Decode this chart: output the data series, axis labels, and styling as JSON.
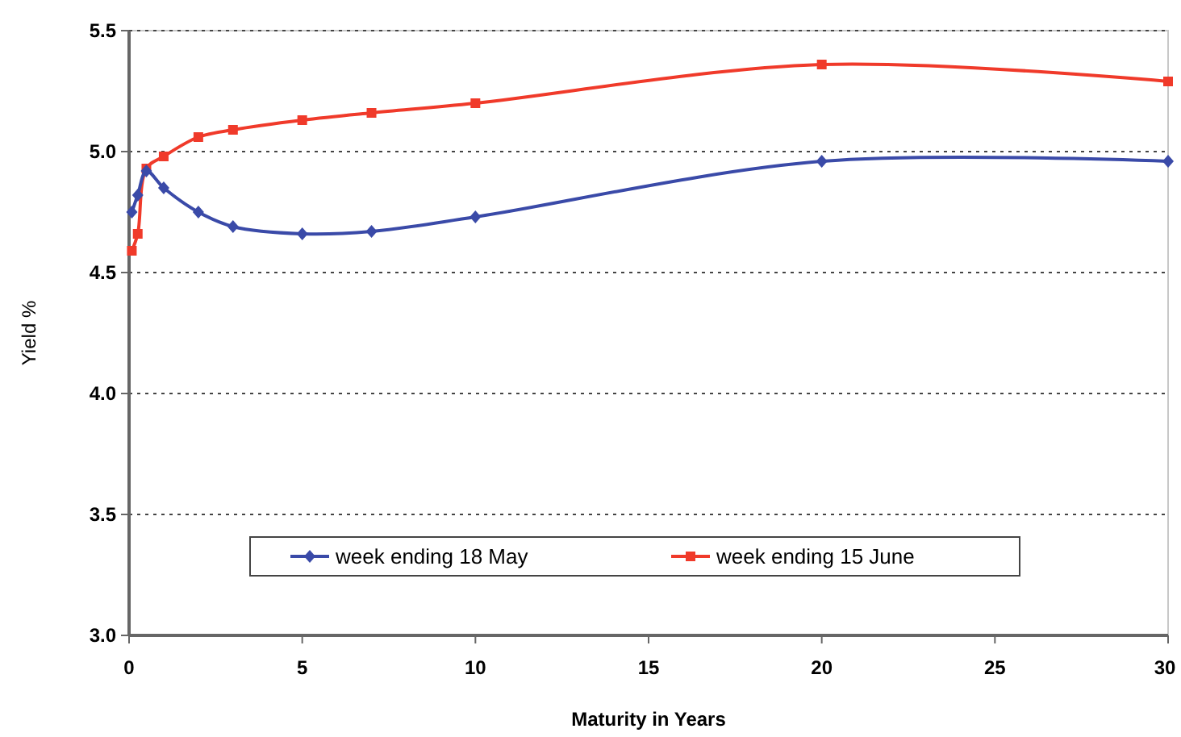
{
  "chart_data": {
    "type": "line",
    "xlabel": "Maturity in Years",
    "ylabel": "Yield %",
    "xlim": [
      0,
      30
    ],
    "xticks": [
      0,
      5,
      10,
      15,
      20,
      25,
      30
    ],
    "ylim": [
      3.0,
      5.5
    ],
    "yticks": [
      {
        "value": 3.0,
        "label": "3.0"
      },
      {
        "value": 3.5,
        "label": "3.5"
      },
      {
        "value": 4.0,
        "label": "4.0"
      },
      {
        "value": 4.5,
        "label": "4.5"
      },
      {
        "value": 5.0,
        "label": "5.0"
      },
      {
        "value": 5.5,
        "label": "5.5"
      }
    ],
    "grid": "y",
    "legend": "bottom",
    "series": [
      {
        "name": "week ending 18 May",
        "color": "#3a4aa8",
        "marker": "diamond",
        "x": [
          0.08,
          0.25,
          0.5,
          1,
          2,
          3,
          5,
          7,
          10,
          20,
          30
        ],
        "values": [
          4.75,
          4.82,
          4.92,
          4.85,
          4.75,
          4.69,
          4.66,
          4.67,
          4.73,
          4.96,
          4.96
        ]
      },
      {
        "name": "week ending 15 June",
        "color": "#f03a2a",
        "marker": "square",
        "x": [
          0.08,
          0.25,
          0.5,
          1,
          2,
          3,
          5,
          7,
          10,
          20,
          30
        ],
        "values": [
          4.59,
          4.66,
          4.93,
          4.98,
          5.06,
          5.09,
          5.13,
          5.16,
          5.2,
          5.36,
          5.29
        ]
      }
    ]
  }
}
